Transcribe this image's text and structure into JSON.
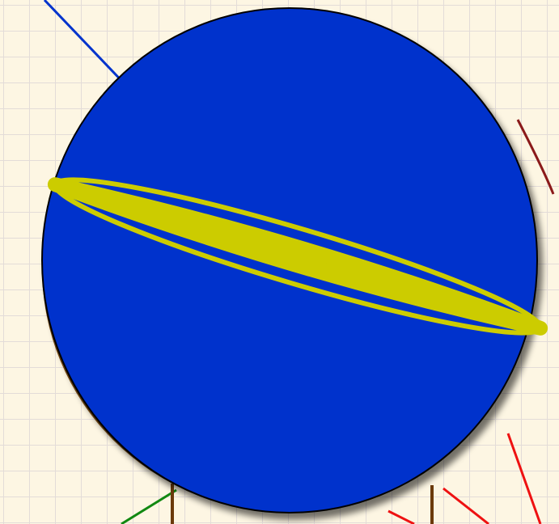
{
  "diagram": {
    "background_color": "#fdf6e3",
    "grid_color": "#e3dcd8",
    "sphere": {
      "fill": "#0033cc",
      "outline": "#000000",
      "shadow_color": "#7a4a10",
      "drop_shadow": "#000000"
    },
    "equator_band_color": "#cccc00",
    "lines": [
      {
        "name": "blue-diagonal-line",
        "color": "#0033cc"
      },
      {
        "name": "green-line",
        "color": "#118811"
      },
      {
        "name": "red-lines",
        "color": "#ee1111"
      },
      {
        "name": "brown-legs",
        "color": "#6b3a0a"
      },
      {
        "name": "dark-red-arc",
        "color": "#8b1a1a"
      }
    ]
  }
}
